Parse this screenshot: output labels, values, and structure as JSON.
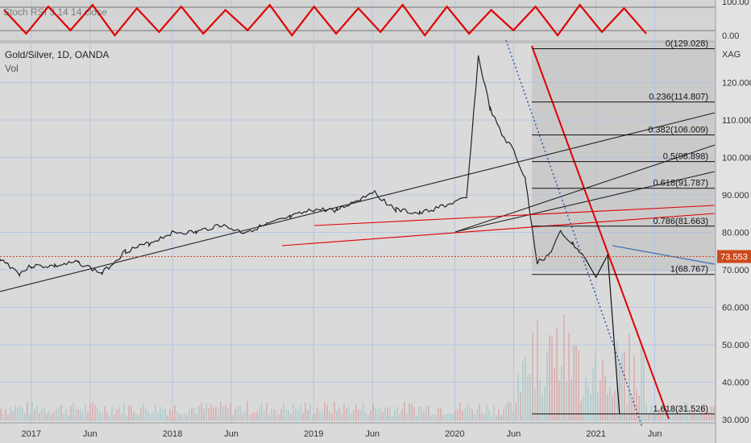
{
  "header": {
    "title": "Gold/Silver, 1D, OANDA",
    "volume_label": "Vol",
    "oscillator_label": "Stoch RSI 3 14 14 close"
  },
  "osc_axis": {
    "ticks": [
      "100.00",
      "0.00"
    ]
  },
  "price_axis": {
    "symbol": "XAG",
    "ticks": [
      "120.000",
      "110.000",
      "100.000",
      "90.000",
      "80.000",
      "70.000",
      "60.000",
      "50.000",
      "40.000",
      "30.000"
    ],
    "current_price": "73.553"
  },
  "time_axis": {
    "ticks": [
      "2017",
      "Jun",
      "2018",
      "Jun",
      "2019",
      "Jun",
      "2020",
      "Jun",
      "2021",
      "Jun"
    ]
  },
  "fib_levels": [
    {
      "label": "0(129.028)",
      "value": 129.028
    },
    {
      "label": "0.236(114.807)",
      "value": 114.807
    },
    {
      "label": "0.382(106.009)",
      "value": 106.009
    },
    {
      "label": "0.5(98.898)",
      "value": 98.898
    },
    {
      "label": "0.618(91.787)",
      "value": 91.787
    },
    {
      "label": "0.786(81.663)",
      "value": 81.663
    },
    {
      "label": "1(68.767)",
      "value": 68.767
    },
    {
      "label": "1.618(31.526)",
      "value": 31.526
    }
  ],
  "chart_data": {
    "type": "line",
    "title": "Gold/Silver, 1D, OANDA",
    "ylabel": "XAG",
    "ylim": [
      30,
      129
    ],
    "series": [
      {
        "name": "Gold/Silver",
        "x": [
          "2016-10",
          "2016-12",
          "2017-01",
          "2017-03",
          "2017-05",
          "2017-07",
          "2017-09",
          "2017-11",
          "2018-01",
          "2018-03",
          "2018-05",
          "2018-07",
          "2018-09",
          "2018-11",
          "2019-01",
          "2019-03",
          "2019-05",
          "2019-06",
          "2019-08",
          "2019-10",
          "2019-12",
          "2020-02",
          "2020-03",
          "2020-04",
          "2020-05",
          "2020-06",
          "2020-07",
          "2020-08",
          "2020-09",
          "2020-10",
          "2020-11",
          "2020-12"
        ],
        "values": [
          74,
          69,
          71,
          71,
          72,
          69,
          75,
          77,
          80,
          80,
          82,
          80,
          82,
          84,
          86,
          86,
          89,
          91,
          86,
          85,
          87,
          89,
          127,
          113,
          106,
          102,
          94,
          72,
          74,
          80,
          77,
          73.5
        ]
      },
      {
        "name": "Stoch RSI",
        "values": [
          80,
          10,
          90,
          20,
          95,
          5,
          85,
          15,
          90,
          10,
          80,
          20,
          95,
          5,
          90,
          10,
          85,
          15,
          95,
          5,
          90,
          10,
          80,
          20,
          90,
          5,
          95,
          15,
          85,
          10
        ]
      }
    ],
    "projection": [
      {
        "x": "2020-12",
        "value": 73.5
      },
      {
        "x": "2021-01",
        "value": 68
      },
      {
        "x": "2021-02",
        "value": 74
      },
      {
        "x": "2021-03",
        "value": 31.5
      }
    ],
    "grid": true,
    "colors": {
      "price": "#222222",
      "stoch": "#e00000",
      "fib": "#000000",
      "trend_red": "#e00000",
      "current_price": "#cc4a1a",
      "volume": "#d8a8a8"
    }
  }
}
